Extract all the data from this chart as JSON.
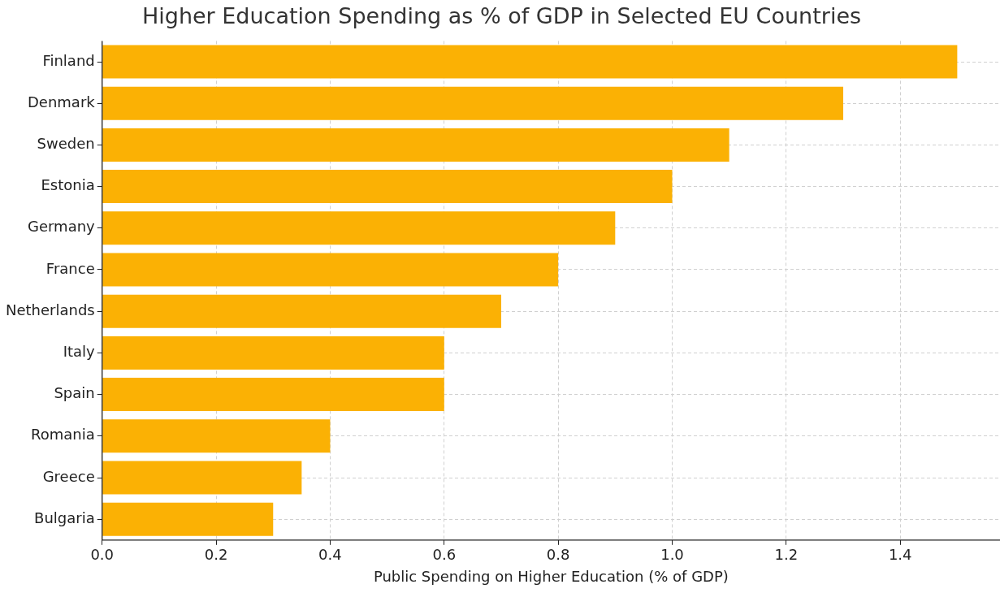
{
  "chart_data": {
    "type": "bar",
    "orientation": "horizontal",
    "title": "Higher Education Spending as % of GDP in Selected EU Countries",
    "xlabel": "Public Spending on Higher Education (% of GDP)",
    "categories": [
      "Finland",
      "Denmark",
      "Sweden",
      "Estonia",
      "Germany",
      "France",
      "Netherlands",
      "Italy",
      "Spain",
      "Romania",
      "Greece",
      "Bulgaria"
    ],
    "values": [
      1.5,
      1.3,
      1.1,
      1.0,
      0.9,
      0.8,
      0.7,
      0.6,
      0.6,
      0.4,
      0.35,
      0.3
    ],
    "color": "#fbb104",
    "xlim": [
      0,
      1.575
    ],
    "xticks": [
      {
        "value": 0,
        "label": "0.0"
      },
      0.2,
      0.4,
      0.6,
      0.8,
      {
        "value": 1,
        "label": "1.0"
      },
      1.2,
      1.4
    ],
    "grid": true
  }
}
